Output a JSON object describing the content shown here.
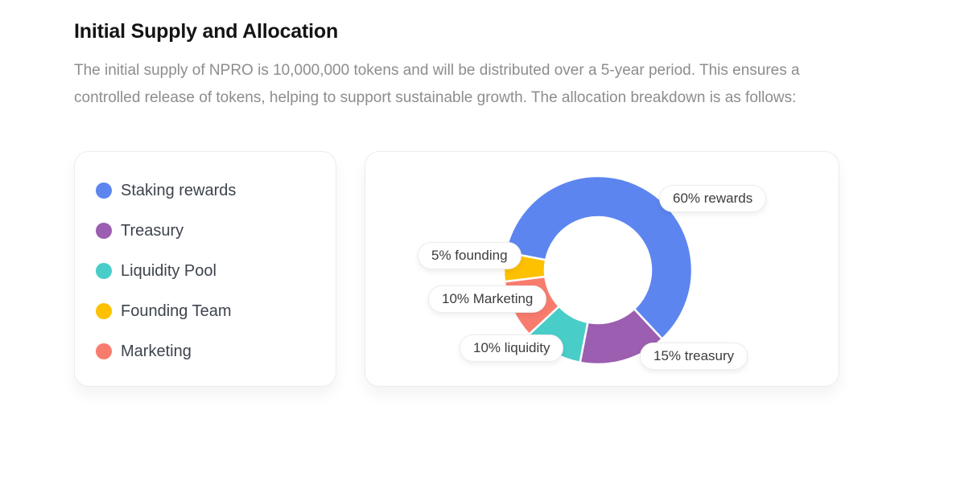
{
  "header": {
    "title": "Initial Supply and Allocation"
  },
  "intro": {
    "text": "The initial supply of NPRO is 10,000,000 tokens and will be distributed over a 5-year period. This ensures a controlled release of tokens, helping to support sustainable growth. The allocation breakdown is as follows:"
  },
  "legend": {
    "items": [
      {
        "label": "Staking rewards",
        "color": "#5d85f0"
      },
      {
        "label": "Treasury",
        "color": "#9b5eb0"
      },
      {
        "label": "Liquidity Pool",
        "color": "#49cdc8"
      },
      {
        "label": "Founding Team",
        "color": "#fdc101"
      },
      {
        "label": "Marketing",
        "color": "#f87c6e"
      }
    ]
  },
  "chart_data": {
    "type": "pie",
    "variant": "doughnut",
    "title": "NPRO initial supply allocation",
    "total_percent": 100,
    "rotation_deg": 281,
    "cutout_ratio": 0.568,
    "segment_border_color": "#ffffff",
    "categories": [
      "Staking rewards",
      "Treasury",
      "Liquidity Pool",
      "Marketing",
      "Founding Team"
    ],
    "values": [
      60,
      15,
      10,
      10,
      5
    ],
    "segments": [
      {
        "name": "Staking rewards",
        "value": 60,
        "color": "#5d85f0",
        "label": "60% rewards"
      },
      {
        "name": "Treasury",
        "value": 15,
        "color": "#9b5eb0",
        "label": "15% treasury"
      },
      {
        "name": "Liquidity Pool",
        "value": 10,
        "color": "#49cdc8",
        "label": "10% liquidity"
      },
      {
        "name": "Marketing",
        "value": 10,
        "color": "#f87c6e",
        "label": "10% Marketing"
      },
      {
        "name": "Founding Team",
        "value": 5,
        "color": "#fdc101",
        "label": "5% founding"
      }
    ]
  }
}
